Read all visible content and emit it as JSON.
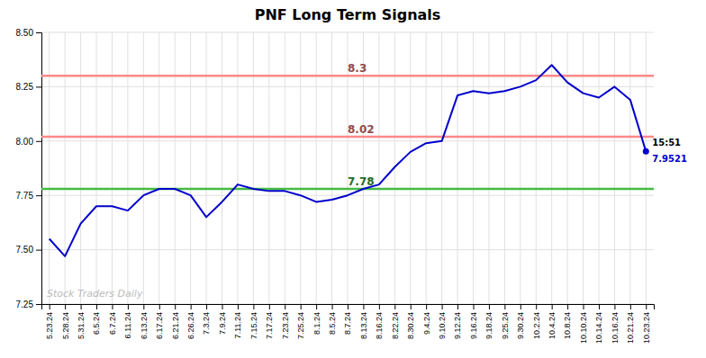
{
  "chart_data": {
    "type": "line",
    "title": "PNF Long Term Signals",
    "watermark": "Stock Traders Daily",
    "color": "#0000cc",
    "grid": true,
    "categories": [
      "5.23.24",
      "5.28.24",
      "5.31.24",
      "6.5.24",
      "6.7.24",
      "6.11.24",
      "6.13.24",
      "6.17.24",
      "6.21.24",
      "6.26.24",
      "7.3.24",
      "7.9.24",
      "7.11.24",
      "7.15.24",
      "7.17.24",
      "7.23.24",
      "7.25.24",
      "8.1.24",
      "8.5.24",
      "8.7.24",
      "8.13.24",
      "8.16.24",
      "8.22.24",
      "8.30.24",
      "9.4.24",
      "9.10.24",
      "9.12.24",
      "9.16.24",
      "9.18.24",
      "9.25.24",
      "9.30.24",
      "10.2.24",
      "10.4.24",
      "10.8.24",
      "10.10.24",
      "10.14.24",
      "10.16.24",
      "10.21.24",
      "10.23.24"
    ],
    "values": [
      7.55,
      7.47,
      7.62,
      7.7,
      7.7,
      7.68,
      7.75,
      7.78,
      7.78,
      7.75,
      7.65,
      7.72,
      7.8,
      7.78,
      7.77,
      7.77,
      7.75,
      7.72,
      7.73,
      7.75,
      7.78,
      7.8,
      7.88,
      7.95,
      7.99,
      8.0,
      8.21,
      8.23,
      8.22,
      8.23,
      8.25,
      8.28,
      8.35,
      8.27,
      8.22,
      8.2,
      8.25,
      8.19,
      7.9521
    ],
    "last_point_label": "15:51",
    "hlines": [
      {
        "value": 8.3,
        "label": "8.3",
        "color": "#ff8888"
      },
      {
        "value": 8.02,
        "label": "8.02",
        "color": "#ff8888"
      },
      {
        "value": 7.78,
        "label": "7.78",
        "color": "#44bb44"
      }
    ],
    "ylim": [
      7.25,
      8.5
    ],
    "yticks": [
      7.25,
      {
        "value": 7.5,
        "label": "7.50"
      },
      7.75,
      {
        "value": 8,
        "label": "8.00"
      },
      8.25,
      {
        "value": 8.5,
        "label": "8.50"
      }
    ]
  }
}
